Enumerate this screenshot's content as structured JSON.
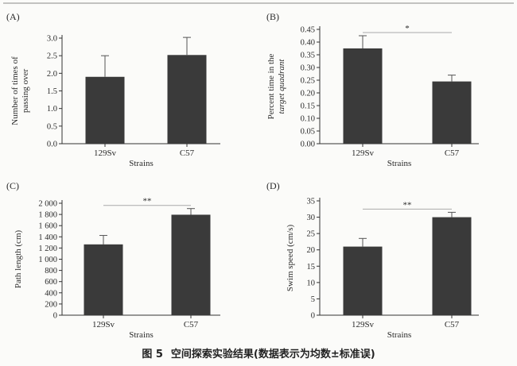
{
  "figure": {
    "caption_number": "图 5",
    "caption_text": "空间探索实验结果(数据表示为均数±标准误)"
  },
  "chart_data": [
    {
      "type": "bar",
      "panel": "(A)",
      "categories": [
        "129Sv",
        "C57"
      ],
      "values": [
        1.9,
        2.52
      ],
      "errors": [
        0.6,
        0.5
      ],
      "xlabel": "Strains",
      "ylabel": [
        "Number of times of",
        "passing over"
      ],
      "ylim": [
        0,
        3.0
      ],
      "yticks": [
        0.0,
        0.5,
        1.0,
        1.5,
        2.0,
        2.5,
        3.0
      ],
      "ytick_labels": [
        "0.0",
        "0.5",
        "1.0",
        "1.5",
        "2.0",
        "2.5",
        "3.0"
      ],
      "significance": "",
      "grid": false,
      "bar_color": "#3a3a3a"
    },
    {
      "type": "bar",
      "panel": "(B)",
      "categories": [
        "129Sv",
        "C57"
      ],
      "values": [
        0.375,
        0.245
      ],
      "errors": [
        0.05,
        0.025
      ],
      "xlabel": "Strains",
      "ylabel": [
        "Percent time in the",
        "target quadrant"
      ],
      "ylim": [
        0,
        0.45
      ],
      "yticks": [
        0.0,
        0.05,
        0.1,
        0.15,
        0.2,
        0.25,
        0.3,
        0.35,
        0.4,
        0.45
      ],
      "ytick_labels": [
        "0.00",
        "0.05",
        "0.10",
        "0.15",
        "0.20",
        "0.25",
        "0.30",
        "0.35",
        "0.40",
        "0.45"
      ],
      "significance": "*",
      "grid": false,
      "bar_color": "#3a3a3a"
    },
    {
      "type": "bar",
      "panel": "(C)",
      "categories": [
        "129Sv",
        "C57"
      ],
      "values": [
        1265,
        1795
      ],
      "errors": [
        160,
        110
      ],
      "xlabel": "Strains",
      "ylabel": [
        "Path length (cm)"
      ],
      "ylim": [
        0,
        2000
      ],
      "yticks": [
        0,
        200,
        400,
        600,
        800,
        1000,
        1200,
        1400,
        1600,
        1800,
        2000
      ],
      "ytick_labels": [
        "0",
        "200",
        "400",
        "600",
        "800",
        "1 000",
        "1 200",
        "1 400",
        "1 600",
        "1 800",
        "2 000"
      ],
      "significance": "**",
      "grid": false,
      "bar_color": "#3a3a3a"
    },
    {
      "type": "bar",
      "panel": "(D)",
      "categories": [
        "129Sv",
        "C57"
      ],
      "values": [
        21,
        30
      ],
      "errors": [
        2.5,
        1.5
      ],
      "xlabel": "Strains",
      "ylabel": [
        "Swim speed (cm/s)"
      ],
      "ylim": [
        0,
        35
      ],
      "yticks": [
        0,
        5,
        10,
        15,
        20,
        25,
        30,
        35
      ],
      "ytick_labels": [
        "0",
        "5",
        "10",
        "15",
        "20",
        "25",
        "30",
        "35"
      ],
      "significance": "**",
      "grid": false,
      "bar_color": "#3a3a3a"
    }
  ]
}
